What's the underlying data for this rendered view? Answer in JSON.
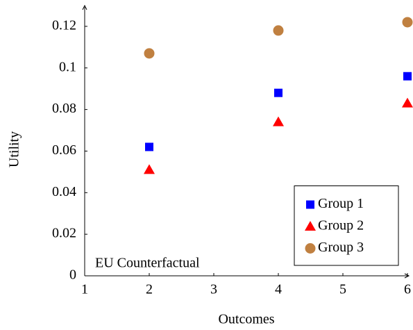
{
  "chart_data": {
    "type": "scatter",
    "x_label": "Outcomes",
    "y_label": "Utility",
    "x": [
      2,
      4,
      6
    ],
    "series": [
      {
        "name": "Group 1",
        "color": "#0000ff",
        "marker": "square",
        "values": [
          0.062,
          0.088,
          0.096
        ]
      },
      {
        "name": "Group 2",
        "color": "#ff0000",
        "marker": "triangle",
        "values": [
          0.051,
          0.074,
          0.083
        ]
      },
      {
        "name": "Group 3",
        "color": "#c08040",
        "marker": "circle",
        "values": [
          0.107,
          0.118,
          0.122
        ]
      }
    ],
    "reference_line": {
      "label": "EU Counterfactual",
      "value": 0
    },
    "xlim": [
      1,
      6
    ],
    "xticks": [
      1,
      2,
      3,
      4,
      5,
      6
    ],
    "ylim": [
      0,
      0.13
    ],
    "yticks": [
      0,
      0.02,
      0.04,
      0.06,
      0.08,
      0.1,
      0.12
    ],
    "legend": "lower right",
    "grid": false
  }
}
